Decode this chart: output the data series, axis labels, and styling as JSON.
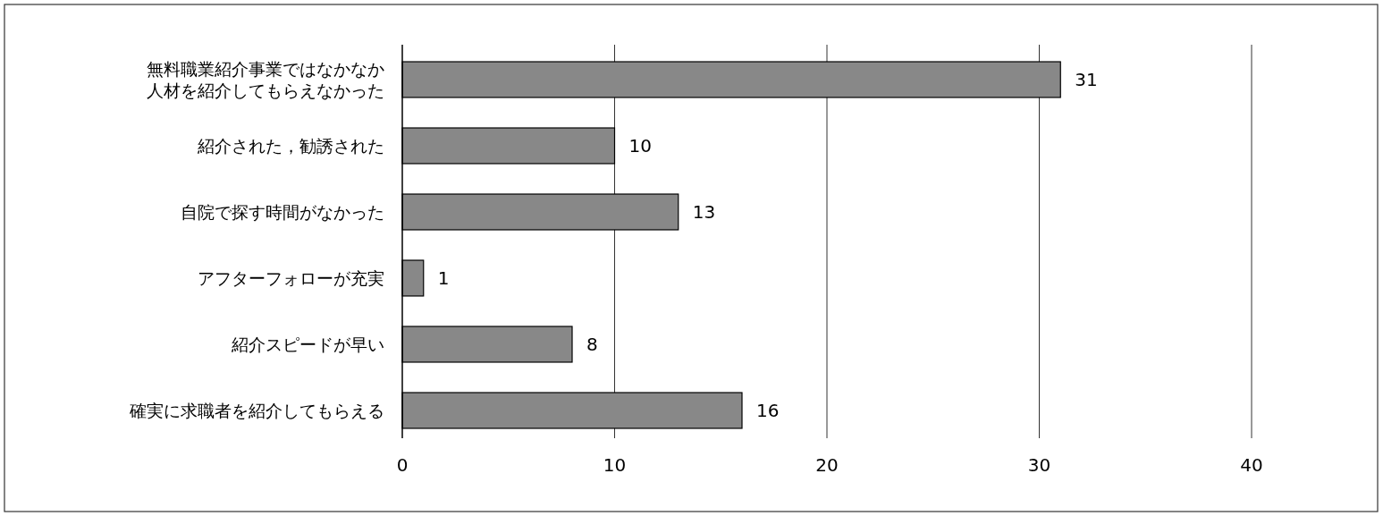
{
  "chart_data": {
    "type": "bar",
    "orientation": "horizontal",
    "categories": [
      "無料職業紹介事業ではなかなか人材を紹介してもらえなかった",
      "紹介された，勧誘された",
      "自院で探す時間がなかった",
      "アフターフォローが充実",
      "紹介スピードが早い",
      "確実に求職者を紹介してもらえる"
    ],
    "values": [
      31,
      10,
      13,
      1,
      8,
      16
    ],
    "color": "#888888",
    "xlim": [
      0,
      40
    ],
    "xticks": [
      0,
      10,
      20,
      30,
      40
    ],
    "grid": "x",
    "data_labels": true
  }
}
